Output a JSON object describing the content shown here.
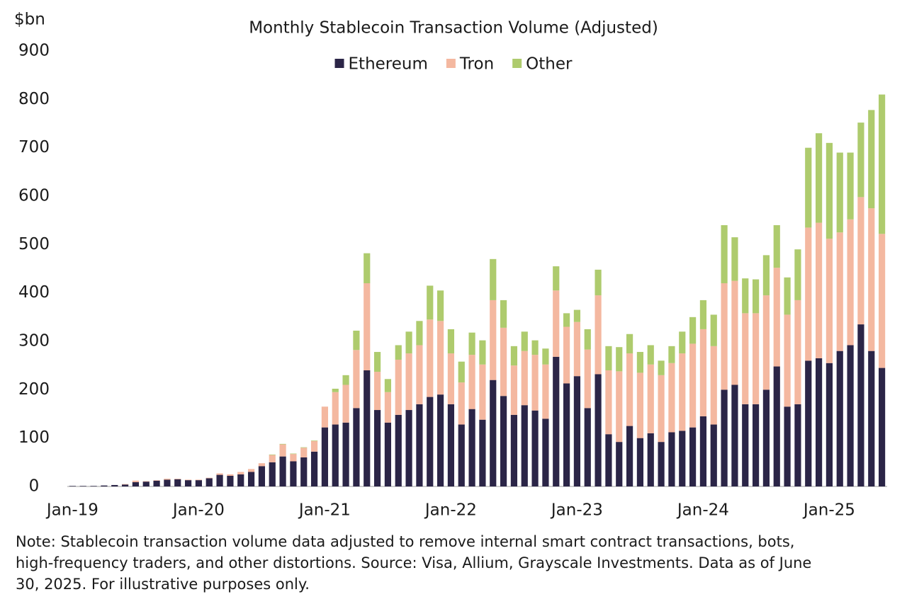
{
  "chart_data": {
    "type": "stacked_bar",
    "title": "Monthly Stablecoin Transaction Volume (Adjusted)",
    "y_axis_label": "$bn",
    "note": [
      "Note: Stablecoin transaction volume data adjusted to remove internal smart contract transactions, bots,",
      "high-frequency traders, and other distortions. Source: Visa, Allium, Grayscale Investments. Data as of June",
      "30, 2025. For illustrative purposes only."
    ],
    "categories": [
      "Jan-19",
      null,
      null,
      null,
      null,
      null,
      null,
      null,
      null,
      null,
      null,
      null,
      "Jan-20",
      null,
      null,
      null,
      null,
      null,
      null,
      null,
      null,
      null,
      null,
      null,
      "Jan-21",
      null,
      null,
      null,
      null,
      null,
      null,
      null,
      null,
      null,
      null,
      null,
      "Jan-22",
      null,
      null,
      null,
      null,
      null,
      null,
      null,
      null,
      null,
      null,
      null,
      "Jan-23",
      null,
      null,
      null,
      null,
      null,
      null,
      null,
      null,
      null,
      null,
      null,
      "Jan-24",
      null,
      null,
      null,
      null,
      null,
      null,
      null,
      null,
      null,
      null,
      null,
      "Jan-25",
      null,
      null,
      null,
      null,
      null
    ],
    "series": [
      {
        "name": "Ethereum",
        "color": "#2b2547",
        "values": [
          1,
          1,
          1,
          2,
          3,
          4,
          9,
          10,
          12,
          14,
          15,
          13,
          13,
          17,
          24,
          22,
          25,
          30,
          42,
          50,
          62,
          52,
          60,
          72,
          122,
          128,
          132,
          162,
          240,
          158,
          132,
          148,
          158,
          170,
          185,
          190,
          170,
          128,
          160,
          138,
          220,
          187,
          148,
          168,
          157,
          140,
          268,
          213,
          228,
          162,
          232,
          108,
          92,
          125,
          100,
          110,
          92,
          112,
          115,
          122,
          145,
          128,
          200,
          210,
          170,
          170,
          200,
          248,
          165,
          170,
          260,
          265,
          255,
          280,
          292,
          335,
          280,
          245
        ]
      },
      {
        "name": "Tron",
        "color": "#f4b8a0",
        "values": [
          0,
          0,
          0,
          0,
          0,
          1,
          3,
          1,
          1,
          2,
          1,
          1,
          1,
          1,
          3,
          3,
          5,
          6,
          6,
          15,
          25,
          15,
          20,
          22,
          43,
          67,
          78,
          120,
          180,
          79,
          63,
          114,
          117,
          122,
          160,
          152,
          105,
          87,
          112,
          114,
          165,
          141,
          102,
          112,
          115,
          112,
          137,
          117,
          112,
          121,
          163,
          132,
          146,
          150,
          135,
          142,
          138,
          143,
          160,
          173,
          180,
          162,
          220,
          215,
          188,
          188,
          195,
          204,
          190,
          215,
          275,
          280,
          257,
          245,
          260,
          263,
          295,
          277
        ]
      },
      {
        "name": "Other",
        "color": "#aecb6d",
        "values": [
          0,
          0,
          0,
          0,
          0,
          0,
          0,
          0,
          0,
          0,
          0,
          0,
          0,
          0,
          0,
          0,
          0,
          0,
          0,
          1,
          1,
          1,
          1,
          1,
          0,
          7,
          20,
          40,
          62,
          41,
          27,
          30,
          45,
          50,
          70,
          63,
          50,
          43,
          46,
          50,
          85,
          57,
          40,
          40,
          30,
          33,
          50,
          28,
          25,
          42,
          53,
          50,
          50,
          40,
          43,
          40,
          30,
          35,
          45,
          55,
          60,
          65,
          120,
          90,
          72,
          70,
          83,
          88,
          77,
          105,
          165,
          185,
          198,
          165,
          138,
          154,
          203,
          288
        ]
      }
    ],
    "ylim": [
      0,
      900
    ],
    "yticks": [
      0,
      100,
      200,
      300,
      400,
      500,
      600,
      700,
      800,
      900
    ],
    "legend": "top"
  }
}
